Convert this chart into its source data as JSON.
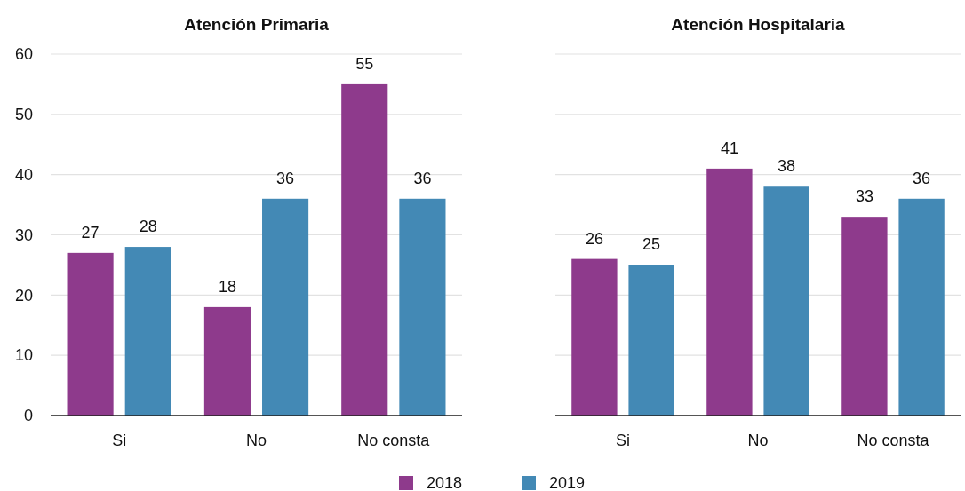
{
  "chart_data": [
    {
      "type": "bar",
      "title": "Atención Primaria",
      "categories": [
        "Si",
        "No",
        "No consta"
      ],
      "series": [
        {
          "name": "2018",
          "color": "#8e3a8c",
          "values": [
            27,
            18,
            55
          ]
        },
        {
          "name": "2019",
          "color": "#4389b5",
          "values": [
            28,
            36,
            36
          ]
        }
      ],
      "ylim": [
        0,
        60
      ],
      "yticks": [
        0,
        10,
        20,
        30,
        40,
        50,
        60
      ],
      "grid": "y",
      "data_labels": true,
      "legend": "bottom"
    },
    {
      "type": "bar",
      "title": "Atención Hospitalaria",
      "categories": [
        "Si",
        "No",
        "No consta"
      ],
      "series": [
        {
          "color": "#8e3a8c",
          "values": [
            26,
            41,
            33
          ]
        },
        {
          "color": "#4389b5",
          "values": [
            25,
            38,
            36
          ]
        }
      ],
      "ylim": [
        0,
        60
      ],
      "yticks": [
        0,
        10,
        20,
        30,
        40,
        50,
        60
      ],
      "grid": "y",
      "data_labels": true,
      "tick_labels": "x"
    }
  ]
}
